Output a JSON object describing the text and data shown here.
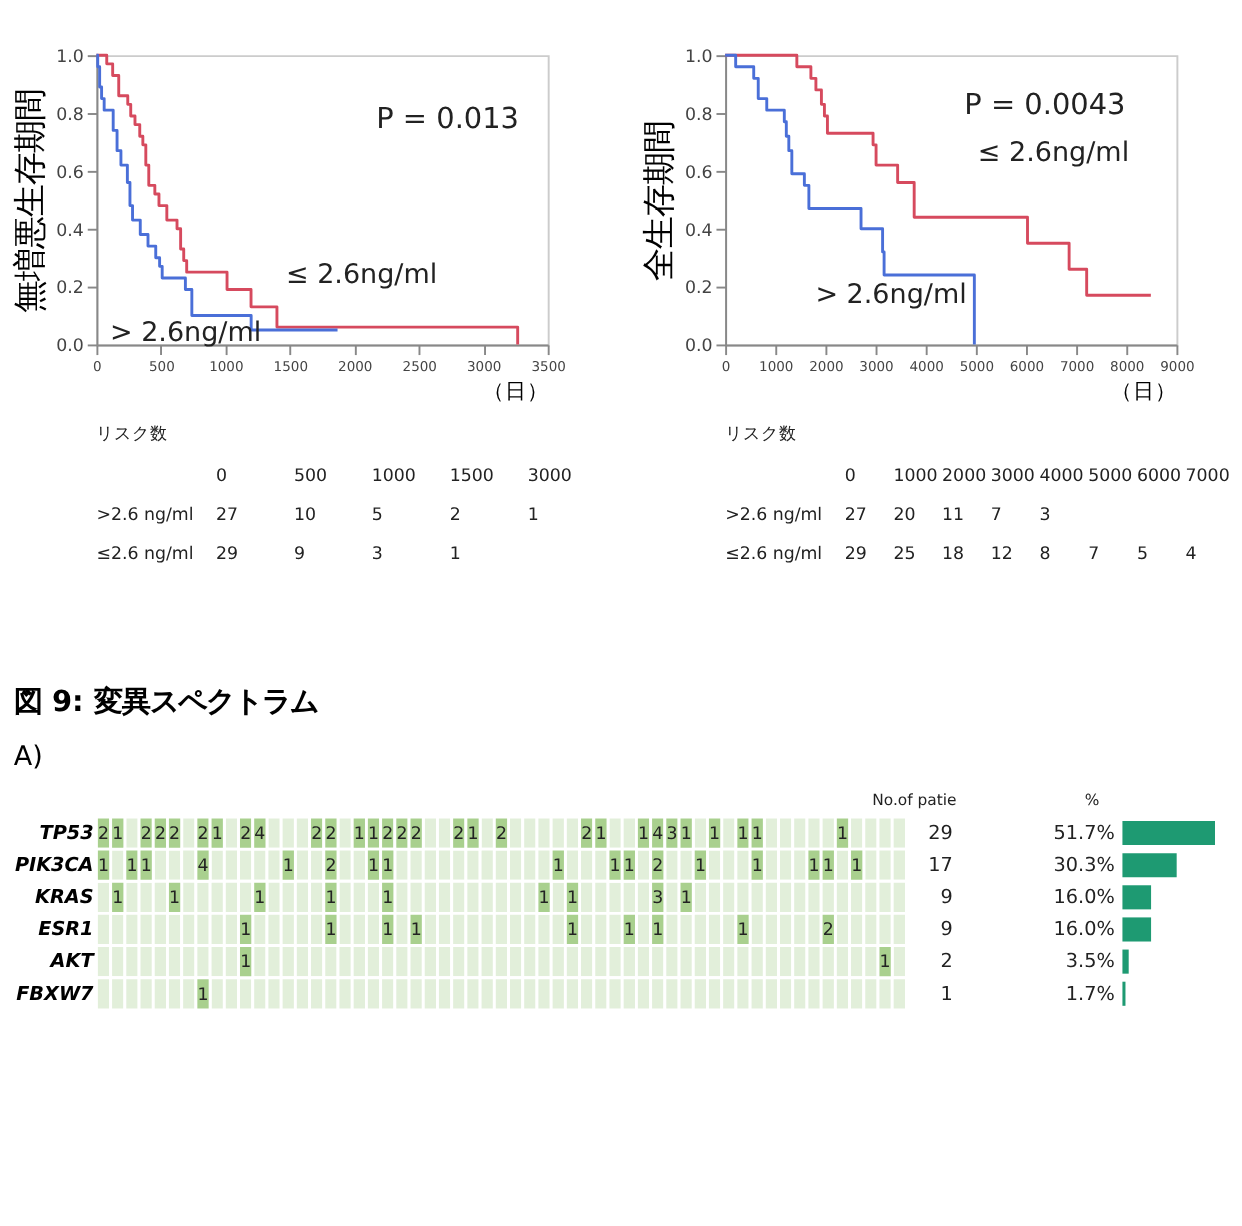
{
  "chart_data": [
    {
      "type": "step",
      "ylabel": "無増悪生存期間",
      "xlabel": "（日）",
      "xlim": [
        0,
        3500
      ],
      "xticks": [
        0,
        500,
        1000,
        1500,
        2000,
        2500,
        3000,
        3500
      ],
      "ylim": [
        0,
        1
      ],
      "yticks": [
        {
          "value": 0,
          "label": "0.0"
        },
        {
          "value": 0.2,
          "label": "0.2"
        },
        {
          "value": 0.4,
          "label": "0.4"
        },
        {
          "value": 0.6,
          "label": "0.6"
        },
        {
          "value": 0.8,
          "label": "0.8"
        },
        {
          "value": 1,
          "label": "1.0"
        }
      ],
      "grid": false,
      "series": [
        {
          "color": "#d64a5e",
          "x": [
            0,
            80,
            126,
            173,
            243,
            266,
            299,
            336,
            360,
            383,
            406,
            453,
            485,
            546,
            625,
            653,
            677,
            700,
            1013,
            1199,
            1400,
            3267,
            3267
          ],
          "values": [
            1,
            0.97,
            0.93,
            0.86,
            0.83,
            0.79,
            0.76,
            0.72,
            0.69,
            0.62,
            0.55,
            0.52,
            0.48,
            0.43,
            0.4,
            0.33,
            0.29,
            0.25,
            0.19,
            0.13,
            0.06,
            0.06,
            0
          ]
        },
        {
          "color": "#4a6fd8",
          "x": [
            0,
            10,
            25,
            40,
            60,
            130,
            160,
            190,
            240,
            260,
            280,
            340,
            400,
            460,
            490,
            510,
            690,
            740,
            1200,
            1870
          ],
          "values": [
            1,
            0.96,
            0.89,
            0.85,
            0.81,
            0.74,
            0.67,
            0.62,
            0.56,
            0.48,
            0.43,
            0.38,
            0.34,
            0.3,
            0.27,
            0.23,
            0.19,
            0.1,
            0.05,
            0.05
          ]
        }
      ],
      "annotations": [
        "P = 0.013",
        "≤ 2.6ng/ml",
        "> 2.6ng/ml",
        "リスク数",
        "\t0\t500\t1000\t1500\t3000",
        ">2.6 ng/ml\t27\t10\t5\t2\t1",
        "≤2.6 ng/ml\t29\t9\t3\t1"
      ]
    },
    {
      "type": "step",
      "ylabel": "全生存期間",
      "xlabel": "（日）",
      "xlim": [
        0,
        9000
      ],
      "xticks": [
        0,
        1000,
        2000,
        3000,
        4000,
        5000,
        6000,
        7000,
        8000,
        9000
      ],
      "ylim": [
        0,
        1
      ],
      "yticks": [
        {
          "value": 0,
          "label": "0.0"
        },
        {
          "value": 0.2,
          "label": "0.2"
        },
        {
          "value": 0.4,
          "label": "0.4"
        },
        {
          "value": 0.6,
          "label": "0.6"
        },
        {
          "value": 0.8,
          "label": "0.8"
        },
        {
          "value": 1,
          "label": "1.0"
        }
      ],
      "grid": false,
      "series": [
        {
          "color": "#d64a5e",
          "x": [
            0,
            1430,
            1710,
            1810,
            1920,
            1980,
            2040,
            2950,
            3010,
            3440,
            3770,
            6030,
            6860,
            7210,
            8490
          ],
          "values": [
            1,
            0.96,
            0.92,
            0.88,
            0.83,
            0.79,
            0.73,
            0.69,
            0.62,
            0.56,
            0.44,
            0.35,
            0.26,
            0.17,
            0.17
          ]
        },
        {
          "color": "#4a6fd8",
          "x": [
            0,
            210,
            570,
            660,
            830,
            1180,
            1220,
            1270,
            1330,
            1580,
            1670,
            2710,
            3140,
            3170,
            4970
          ],
          "values": [
            1,
            0.96,
            0.92,
            0.85,
            0.81,
            0.77,
            0.72,
            0.67,
            0.59,
            0.55,
            0.47,
            0.4,
            0.32,
            0.24,
            0
          ]
        }
      ],
      "annotations": [
        "P = 0.0043",
        "≤ 2.6ng/ml",
        "> 2.6ng/ml",
        "リスク数",
        "\t0\t1000\t2000\t3000\t4000\t5000\t6000\t7000",
        ">2.6 ng/ml\t27\t20\t11\t7\t3",
        "≤2.6 ng/ml\t29\t25\t18\t12\t8\t7\t5\t4"
      ]
    },
    {
      "type": "heatmap",
      "data_labels": true,
      "title": "図 9: 変異スペクトラム",
      "subtitle": "A)",
      "annotations": [
        "No.of patie"
      ],
      "categories": [
        null,
        null,
        null,
        null,
        null,
        null,
        null,
        null,
        null,
        null,
        null,
        null,
        null,
        null,
        null,
        null,
        null,
        null,
        null,
        null,
        null,
        null,
        null,
        null,
        null,
        null,
        null,
        null,
        null,
        null,
        null,
        null,
        null,
        null,
        null,
        null,
        null,
        null,
        null,
        null,
        null,
        null,
        null,
        null,
        null,
        null,
        null,
        null,
        null,
        null,
        null,
        null,
        null,
        null,
        null,
        null,
        null
      ],
      "y_categories": [
        "TP53",
        "PIK3CA",
        "KRAS",
        "ESR1",
        "AKT",
        "FBXW7"
      ],
      "y2_categories": [
        "29",
        "17",
        "9",
        "9",
        "2",
        "1"
      ],
      "cells": [
        [
          2,
          1,
          null,
          2,
          2,
          2,
          null,
          2,
          1,
          null,
          2,
          4,
          null,
          null,
          null,
          2,
          2,
          null,
          1,
          1,
          2,
          2,
          2,
          null,
          null,
          2,
          1,
          null,
          2,
          null,
          null,
          null,
          null,
          null,
          2,
          1,
          null,
          null,
          1,
          4,
          3,
          1,
          null,
          1,
          null,
          1,
          1,
          null,
          null,
          null,
          null,
          null,
          1,
          null,
          null,
          null,
          null
        ],
        [
          1,
          null,
          1,
          1,
          null,
          null,
          null,
          4,
          null,
          null,
          null,
          null,
          null,
          1,
          null,
          null,
          2,
          null,
          null,
          1,
          1,
          null,
          null,
          null,
          null,
          null,
          null,
          null,
          null,
          null,
          null,
          null,
          1,
          null,
          null,
          null,
          1,
          1,
          null,
          2,
          null,
          null,
          1,
          null,
          null,
          null,
          1,
          null,
          null,
          null,
          1,
          1,
          null,
          1,
          null,
          null,
          null
        ],
        [
          null,
          1,
          null,
          null,
          null,
          1,
          null,
          null,
          null,
          null,
          null,
          1,
          null,
          null,
          null,
          null,
          1,
          null,
          null,
          null,
          1,
          null,
          null,
          null,
          null,
          null,
          null,
          null,
          null,
          null,
          null,
          1,
          null,
          1,
          null,
          null,
          null,
          null,
          null,
          3,
          null,
          1,
          null,
          null,
          null,
          null,
          null,
          null,
          null,
          null,
          null,
          null,
          null,
          null,
          null,
          null,
          null
        ],
        [
          null,
          null,
          null,
          null,
          null,
          null,
          null,
          null,
          null,
          null,
          1,
          null,
          null,
          null,
          null,
          null,
          1,
          null,
          null,
          null,
          1,
          null,
          1,
          null,
          null,
          null,
          null,
          null,
          null,
          null,
          null,
          null,
          null,
          1,
          null,
          null,
          null,
          1,
          null,
          1,
          null,
          null,
          null,
          null,
          null,
          1,
          null,
          null,
          null,
          null,
          null,
          2,
          null,
          null,
          null,
          null,
          null
        ],
        [
          null,
          null,
          null,
          null,
          null,
          null,
          null,
          null,
          null,
          null,
          1,
          null,
          null,
          null,
          null,
          null,
          null,
          null,
          null,
          null,
          null,
          null,
          null,
          null,
          null,
          null,
          null,
          null,
          null,
          null,
          null,
          null,
          null,
          null,
          null,
          null,
          null,
          null,
          null,
          null,
          null,
          null,
          null,
          null,
          null,
          null,
          null,
          null,
          null,
          null,
          null,
          null,
          null,
          null,
          null,
          1,
          null
        ],
        [
          null,
          null,
          null,
          null,
          null,
          null,
          null,
          1,
          null,
          null,
          null,
          null,
          null,
          null,
          null,
          null,
          null,
          null,
          null,
          null,
          null,
          null,
          null,
          null,
          null,
          null,
          null,
          null,
          null,
          null,
          null,
          null,
          null,
          null,
          null,
          null,
          null,
          null,
          null,
          null,
          null,
          null,
          null,
          null,
          null,
          null,
          null,
          null,
          null,
          null,
          null,
          null,
          null,
          null,
          null,
          null,
          null
        ]
      ]
    },
    {
      "type": "bar",
      "orientation": "horizontal",
      "categories": [
        null,
        null,
        null,
        null,
        null,
        null
      ],
      "values": [
        51.7,
        30.3,
        16.0,
        16.0,
        3.5,
        1.7
      ],
      "value_labels": [
        "51.7%",
        "30.3%",
        "16.0%",
        "16.0%",
        "3.5%",
        "1.7%"
      ],
      "color": "#1e9a72",
      "annotations": [
        "%"
      ]
    }
  ]
}
